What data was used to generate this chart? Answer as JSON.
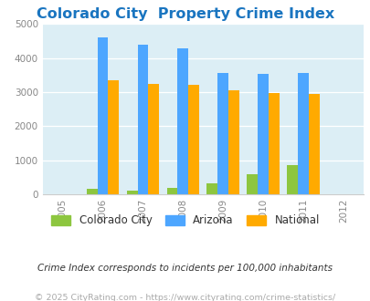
{
  "title": "Colorado City  Property Crime Index",
  "years": [
    2005,
    2006,
    2007,
    2008,
    2009,
    2010,
    2011,
    2012
  ],
  "bar_years": [
    2006,
    2007,
    2008,
    2009,
    2010,
    2011
  ],
  "colorado_city": [
    150,
    100,
    175,
    320,
    580,
    850
  ],
  "arizona": [
    4620,
    4400,
    4280,
    3560,
    3530,
    3560
  ],
  "national": [
    3350,
    3230,
    3210,
    3060,
    2960,
    2950
  ],
  "color_colorado": "#8dc63f",
  "color_arizona": "#4da6ff",
  "color_national": "#ffaa00",
  "bg_color": "#dceef5",
  "title_color": "#1a75c0",
  "ylim": [
    0,
    5000
  ],
  "yticks": [
    0,
    1000,
    2000,
    3000,
    4000,
    5000
  ],
  "legend_labels": [
    "Colorado City",
    "Arizona",
    "National"
  ],
  "footnote1": "Crime Index corresponds to incidents per 100,000 inhabitants",
  "footnote2": "© 2025 CityRating.com - https://www.cityrating.com/crime-statistics/",
  "bar_width": 0.27
}
